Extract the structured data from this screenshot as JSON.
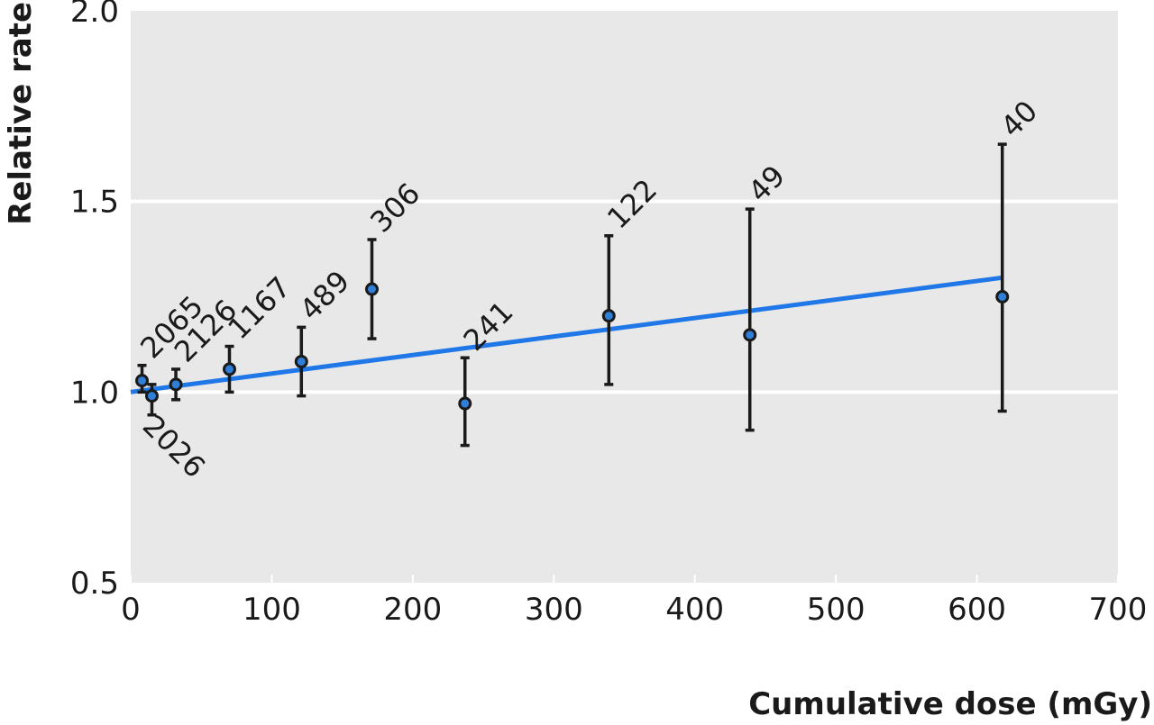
{
  "chart_data": {
    "type": "scatter",
    "xlabel": "Cumulative dose (mGy)",
    "ylabel": "Relative rate",
    "xlim": [
      0,
      700
    ],
    "ylim": [
      0.5,
      2.0
    ],
    "x_ticks": [
      0,
      100,
      200,
      300,
      400,
      500,
      600,
      700
    ],
    "x_tick_labels": [
      "0",
      "100",
      "200",
      "300",
      "400",
      "500",
      "600",
      "700"
    ],
    "y_ticks": [
      0.5,
      1.0,
      1.5,
      2.0
    ],
    "y_tick_labels": [
      "0.5",
      "1.0",
      "1.5",
      "2.0"
    ],
    "grid": "horizontal",
    "background": "#e8e8e8",
    "colors": {
      "fit_line": "#1f77e8",
      "points": "#1a1a1a",
      "point_fill": "#2f7fd8",
      "gridline": "#ffffff"
    },
    "points": [
      {
        "x": 8,
        "y": 1.03,
        "lo": 1.0,
        "hi": 1.07,
        "label": "2065",
        "label_pos": "above"
      },
      {
        "x": 15,
        "y": 0.99,
        "lo": 0.94,
        "hi": 1.02,
        "label": "2026",
        "label_pos": "below"
      },
      {
        "x": 32,
        "y": 1.02,
        "lo": 0.98,
        "hi": 1.06,
        "label": "2126",
        "label_pos": "above"
      },
      {
        "x": 70,
        "y": 1.06,
        "lo": 1.0,
        "hi": 1.12,
        "label": "1167",
        "label_pos": "above"
      },
      {
        "x": 121,
        "y": 1.08,
        "lo": 0.99,
        "hi": 1.17,
        "label": "489",
        "label_pos": "above"
      },
      {
        "x": 171,
        "y": 1.27,
        "lo": 1.14,
        "hi": 1.4,
        "label": "306",
        "label_pos": "above"
      },
      {
        "x": 237,
        "y": 0.97,
        "lo": 0.86,
        "hi": 1.09,
        "label": "241",
        "label_pos": "above"
      },
      {
        "x": 339,
        "y": 1.2,
        "lo": 1.02,
        "hi": 1.41,
        "label": "122",
        "label_pos": "above"
      },
      {
        "x": 439,
        "y": 1.15,
        "lo": 0.9,
        "hi": 1.48,
        "label": "49",
        "label_pos": "above"
      },
      {
        "x": 618,
        "y": 1.25,
        "lo": 0.95,
        "hi": 1.65,
        "label": "40",
        "label_pos": "above"
      }
    ],
    "fit_line": {
      "x": [
        0,
        618
      ],
      "y": [
        1.0,
        1.3
      ]
    }
  }
}
